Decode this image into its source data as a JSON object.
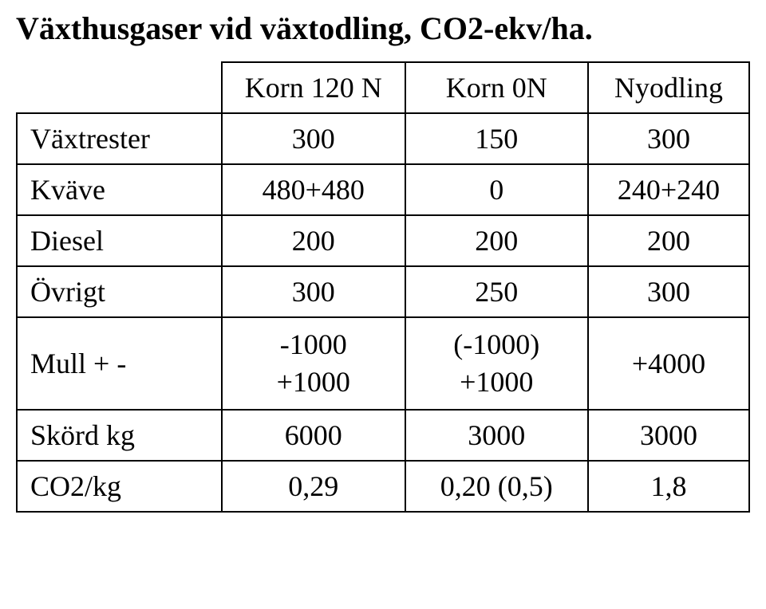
{
  "title": "Växthusgaser vid växtodling, CO2-ekv/ha.",
  "table": {
    "font_size_title": 40,
    "font_size_cell": 36,
    "border_color": "#000000",
    "text_color": "#000000",
    "background_color": "#ffffff",
    "col_widths_pct": [
      28,
      25,
      25,
      22
    ],
    "columns": [
      "",
      "Korn 120 N",
      "Korn 0N",
      "Nyodling"
    ],
    "rows": [
      {
        "label": "Växtrester",
        "cells": [
          "300",
          "150",
          "300"
        ]
      },
      {
        "label": "Kväve",
        "cells": [
          "480+480",
          "0",
          "240+240"
        ]
      },
      {
        "label": "Diesel",
        "cells": [
          "200",
          "200",
          "200"
        ]
      },
      {
        "label": "Övrigt",
        "cells": [
          "300",
          "250",
          "300"
        ]
      },
      {
        "label": "Mull + -",
        "cells": [
          [
            "-1000",
            "+1000"
          ],
          [
            "(-1000)",
            "+1000"
          ],
          "+4000"
        ]
      },
      {
        "label": "Skörd kg",
        "cells": [
          "6000",
          "3000",
          "3000"
        ]
      },
      {
        "label": "CO2/kg",
        "cells": [
          "0,29",
          "0,20 (0,5)",
          "1,8"
        ]
      }
    ]
  }
}
